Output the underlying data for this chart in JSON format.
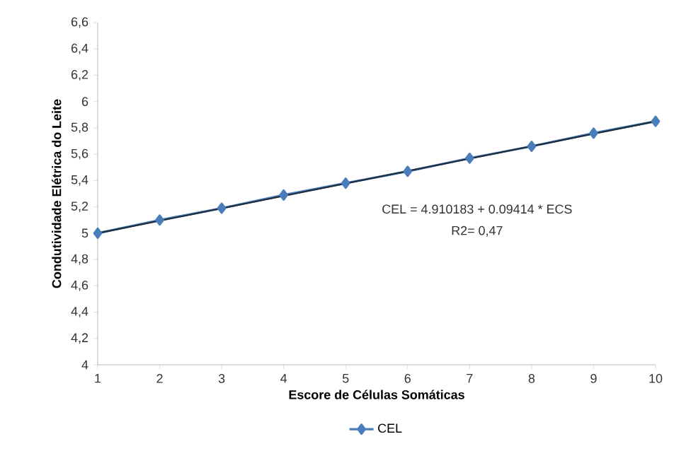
{
  "chart_data": {
    "type": "line",
    "xlabel": "Escore de Células Somáticas",
    "ylabel": "Condutividade Elétrica do Leite",
    "x": [
      1,
      2,
      3,
      4,
      5,
      6,
      7,
      8,
      9,
      10
    ],
    "series": [
      {
        "name": "CEL",
        "color": "#4a7ebb",
        "values": [
          5.0,
          5.1,
          5.19,
          5.29,
          5.38,
          5.47,
          5.57,
          5.66,
          5.76,
          5.85
        ]
      },
      {
        "type": "line",
        "color": "#1f2d3d",
        "x": [
          1,
          10
        ],
        "values": [
          5.0,
          5.85
        ],
        "marker": "none"
      }
    ],
    "xlim": [
      1,
      10
    ],
    "xticks": [
      1,
      2,
      3,
      4,
      5,
      6,
      7,
      8,
      9,
      10
    ],
    "ylim": [
      4,
      6.6
    ],
    "yticks": [
      4,
      {
        "value": 4.2,
        "label": "4,2"
      },
      {
        "value": 4.4,
        "label": "4,4"
      },
      {
        "value": 4.6,
        "label": "4,6"
      },
      {
        "value": 4.8,
        "label": "4,8"
      },
      5,
      {
        "value": 5.2,
        "label": "5,2"
      },
      {
        "value": 5.4,
        "label": "5,4"
      },
      {
        "value": 5.6,
        "label": "5,6"
      },
      {
        "value": 5.8,
        "label": "5,8"
      },
      6,
      {
        "value": 6.2,
        "label": "6,2"
      },
      {
        "value": 6.4,
        "label": "6,4"
      },
      {
        "value": 6.6,
        "label": "6,6"
      }
    ],
    "annotations": [
      "CEL = 4.910183  +  0.09414 * ECS",
      "R2= 0,47"
    ],
    "marker": "diamond",
    "legend": "bottom",
    "grid": false
  }
}
